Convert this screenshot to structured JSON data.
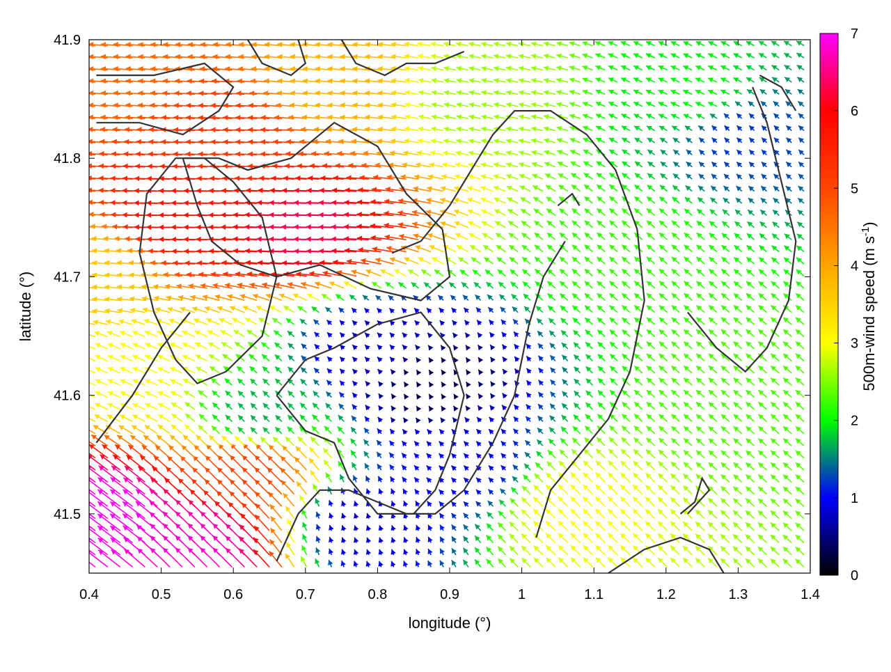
{
  "chart_data": {
    "type": "vector-field",
    "xlabel": "longitude (°)",
    "ylabel": "latitude (°)",
    "colorbar_label": "500m-wind speed (m s",
    "colorbar_label_sup": "-1",
    "colorbar_label_end": ")",
    "xlim": [
      0.4,
      1.4
    ],
    "ylim": [
      41.45,
      41.9
    ],
    "color_range": [
      0,
      7
    ],
    "xticks": [
      "0.4",
      "0.5",
      "0.6",
      "0.7",
      "0.8",
      "0.9",
      "1",
      "1.1",
      "1.2",
      "1.3",
      "1.4"
    ],
    "xtick_values": [
      0.4,
      0.5,
      0.6,
      0.7,
      0.8,
      0.9,
      1.0,
      1.1,
      1.2,
      1.3,
      1.4
    ],
    "yticks": [
      "41.5",
      "41.6",
      "41.7",
      "41.8",
      "41.9"
    ],
    "ytick_values": [
      41.5,
      41.6,
      41.7,
      41.8,
      41.9
    ],
    "colorbar_ticks": [
      "0",
      "1",
      "2",
      "3",
      "4",
      "5",
      "6",
      "7"
    ],
    "colorbar_tick_values": [
      0,
      1,
      2,
      3,
      4,
      5,
      6,
      7
    ],
    "palette": [
      "#000000",
      "#0000ff",
      "#00ff00",
      "#ffff00",
      "#ffa500",
      "#ff4500",
      "#ff0000",
      "#ff00ff"
    ],
    "grid": false,
    "speed_regions": [
      {
        "lon": 0.55,
        "lat": 41.75,
        "speed": 5.8,
        "u": -1.0,
        "v": 0.02
      },
      {
        "lon": 0.72,
        "lat": 41.74,
        "speed": 6.3,
        "u": -1.0,
        "v": 0.03
      },
      {
        "lon": 0.62,
        "lat": 41.82,
        "speed": 5.2,
        "u": -1.0,
        "v": 0.05
      },
      {
        "lon": 0.45,
        "lat": 41.88,
        "speed": 4.6,
        "u": -1.0,
        "v": 0.08
      },
      {
        "lon": 0.75,
        "lat": 41.86,
        "speed": 3.8,
        "u": -1.0,
        "v": 0.1
      },
      {
        "lon": 0.95,
        "lat": 41.85,
        "speed": 2.6,
        "u": -1.0,
        "v": 0.2
      },
      {
        "lon": 1.25,
        "lat": 41.85,
        "speed": 2.0,
        "u": -0.9,
        "v": 0.4
      },
      {
        "lon": 1.3,
        "lat": 41.82,
        "speed": 1.2,
        "u": -0.7,
        "v": 0.7
      },
      {
        "lon": 1.15,
        "lat": 41.72,
        "speed": 2.2,
        "u": -0.75,
        "v": 0.65
      },
      {
        "lon": 1.3,
        "lat": 41.6,
        "speed": 2.3,
        "u": -0.75,
        "v": 0.65
      },
      {
        "lon": 0.87,
        "lat": 41.61,
        "speed": 0.3,
        "u": -0.5,
        "v": 0.8
      },
      {
        "lon": 0.8,
        "lat": 41.64,
        "speed": 0.8,
        "u": -0.7,
        "v": 0.7
      },
      {
        "lon": 0.92,
        "lat": 41.54,
        "speed": 1.0,
        "u": -0.7,
        "v": 0.7
      },
      {
        "lon": 0.78,
        "lat": 41.49,
        "speed": 0.8,
        "u": -0.3,
        "v": 0.9
      },
      {
        "lon": 0.64,
        "lat": 41.58,
        "speed": 1.7,
        "u": -0.7,
        "v": 0.7
      },
      {
        "lon": 1.08,
        "lat": 41.5,
        "speed": 3.0,
        "u": -0.7,
        "v": 0.7
      },
      {
        "lon": 0.44,
        "lat": 41.49,
        "speed": 7.0,
        "u": -0.8,
        "v": 0.6
      },
      {
        "lon": 0.56,
        "lat": 41.47,
        "speed": 6.8,
        "u": -0.7,
        "v": 0.7
      },
      {
        "lon": 0.63,
        "lat": 41.53,
        "speed": 5.0,
        "u": -0.7,
        "v": 0.7
      },
      {
        "lon": 0.48,
        "lat": 41.62,
        "speed": 3.0,
        "u": -0.9,
        "v": 0.4
      },
      {
        "lon": 0.42,
        "lat": 41.7,
        "speed": 3.6,
        "u": -1.0,
        "v": 0.1
      }
    ],
    "contours": [
      [
        [
          0.41,
          41.83
        ],
        [
          0.47,
          41.83
        ],
        [
          0.53,
          41.82
        ],
        [
          0.58,
          41.84
        ],
        [
          0.6,
          41.86
        ],
        [
          0.56,
          41.88
        ],
        [
          0.49,
          41.87
        ],
        [
          0.44,
          41.87
        ],
        [
          0.41,
          41.87
        ]
      ],
      [
        [
          0.62,
          41.9
        ],
        [
          0.64,
          41.88
        ],
        [
          0.68,
          41.87
        ],
        [
          0.7,
          41.88
        ],
        [
          0.69,
          41.9
        ]
      ],
      [
        [
          0.53,
          41.8
        ],
        [
          0.55,
          41.76
        ],
        [
          0.57,
          41.73
        ],
        [
          0.61,
          41.71
        ],
        [
          0.66,
          41.7
        ],
        [
          0.72,
          41.71
        ],
        [
          0.79,
          41.69
        ],
        [
          0.86,
          41.68
        ],
        [
          0.9,
          41.7
        ],
        [
          0.89,
          41.74
        ],
        [
          0.84,
          41.77
        ],
        [
          0.8,
          41.81
        ],
        [
          0.74,
          41.83
        ],
        [
          0.68,
          41.8
        ],
        [
          0.62,
          41.79
        ],
        [
          0.58,
          41.8
        ],
        [
          0.53,
          41.8
        ]
      ],
      [
        [
          0.52,
          41.63
        ],
        [
          0.49,
          41.67
        ],
        [
          0.47,
          41.72
        ],
        [
          0.48,
          41.77
        ],
        [
          0.52,
          41.8
        ],
        [
          0.56,
          41.8
        ],
        [
          0.6,
          41.78
        ],
        [
          0.64,
          41.75
        ],
        [
          0.66,
          41.7
        ],
        [
          0.64,
          41.65
        ],
        [
          0.59,
          41.62
        ],
        [
          0.55,
          41.61
        ],
        [
          0.52,
          41.63
        ]
      ],
      [
        [
          0.75,
          41.9
        ],
        [
          0.77,
          41.88
        ],
        [
          0.81,
          41.87
        ],
        [
          0.84,
          41.88
        ],
        [
          0.88,
          41.88
        ],
        [
          0.92,
          41.89
        ]
      ],
      [
        [
          0.82,
          41.72
        ],
        [
          0.86,
          41.73
        ],
        [
          0.9,
          41.76
        ],
        [
          0.94,
          41.8
        ],
        [
          0.96,
          41.82
        ],
        [
          0.99,
          41.84
        ],
        [
          1.04,
          41.84
        ],
        [
          1.09,
          41.82
        ],
        [
          1.13,
          41.79
        ],
        [
          1.16,
          41.74
        ],
        [
          1.17,
          41.68
        ],
        [
          1.15,
          41.62
        ],
        [
          1.12,
          41.58
        ],
        [
          1.08,
          41.55
        ],
        [
          1.04,
          41.52
        ],
        [
          1.02,
          41.48
        ]
      ],
      [
        [
          1.05,
          41.76
        ],
        [
          1.07,
          41.77
        ],
        [
          1.08,
          41.76
        ]
      ],
      [
        [
          0.41,
          41.56
        ],
        [
          0.46,
          41.6
        ],
        [
          0.5,
          41.64
        ],
        [
          0.54,
          41.67
        ]
      ],
      [
        [
          0.66,
          41.6
        ],
        [
          0.7,
          41.57
        ],
        [
          0.74,
          41.56
        ],
        [
          0.76,
          41.53
        ],
        [
          0.8,
          41.5
        ],
        [
          0.85,
          41.5
        ],
        [
          0.88,
          41.52
        ],
        [
          0.9,
          41.55
        ],
        [
          0.92,
          41.6
        ],
        [
          0.9,
          41.64
        ],
        [
          0.86,
          41.67
        ],
        [
          0.8,
          41.66
        ],
        [
          0.74,
          41.64
        ],
        [
          0.7,
          41.63
        ],
        [
          0.66,
          41.6
        ]
      ],
      [
        [
          0.66,
          41.46
        ],
        [
          0.69,
          41.5
        ],
        [
          0.72,
          41.52
        ],
        [
          0.76,
          41.52
        ],
        [
          0.8,
          41.51
        ],
        [
          0.84,
          41.5
        ],
        [
          0.88,
          41.5
        ],
        [
          0.92,
          41.52
        ],
        [
          0.96,
          41.56
        ],
        [
          0.99,
          41.6
        ],
        [
          1.01,
          41.66
        ],
        [
          1.03,
          41.7
        ],
        [
          1.06,
          41.73
        ]
      ],
      [
        [
          1.12,
          41.45
        ],
        [
          1.17,
          41.47
        ],
        [
          1.22,
          41.48
        ],
        [
          1.26,
          41.47
        ],
        [
          1.28,
          41.45
        ]
      ],
      [
        [
          1.22,
          41.5
        ],
        [
          1.24,
          41.51
        ],
        [
          1.25,
          41.53
        ],
        [
          1.26,
          41.52
        ],
        [
          1.23,
          41.5
        ]
      ],
      [
        [
          1.23,
          41.67
        ],
        [
          1.27,
          41.64
        ],
        [
          1.31,
          41.62
        ],
        [
          1.34,
          41.64
        ],
        [
          1.37,
          41.68
        ],
        [
          1.38,
          41.73
        ],
        [
          1.36,
          41.78
        ],
        [
          1.34,
          41.83
        ],
        [
          1.32,
          41.86
        ]
      ],
      [
        [
          1.33,
          41.87
        ],
        [
          1.36,
          41.86
        ],
        [
          1.38,
          41.84
        ]
      ]
    ]
  }
}
